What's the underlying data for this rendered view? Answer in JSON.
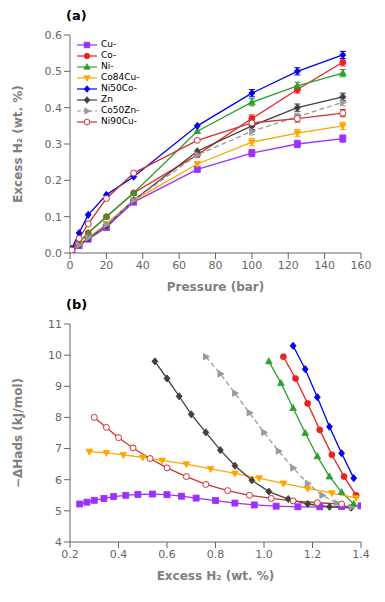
{
  "chart_data": [
    {
      "type": "line",
      "title": "(a)",
      "x_label": "Pressure (bar)",
      "y_label": "Excess H₂ (wt. %)",
      "xlim": [
        0,
        160
      ],
      "ylim": [
        0,
        0.6
      ],
      "xticks": [
        0,
        20,
        40,
        60,
        80,
        100,
        120,
        140,
        160
      ],
      "yticks": [
        {
          "value": 0.0,
          "label": "0.0"
        },
        0.1,
        0.2,
        0.3,
        0.4,
        0.5,
        0.6
      ],
      "legend": "upper left",
      "series": [
        {
          "name": "Cu-",
          "color": "#9B30FF",
          "marker": "square",
          "line_style": "solid",
          "x": [
            1,
            5,
            10,
            20,
            35,
            70,
            100,
            125,
            150
          ],
          "values": [
            0.008,
            0.02,
            0.038,
            0.07,
            0.14,
            0.23,
            0.275,
            0.3,
            0.315
          ],
          "yerr": [
            null,
            null,
            null,
            null,
            null,
            null,
            0.01,
            0.01,
            0.01
          ]
        },
        {
          "name": "Co-",
          "color": "#EE2020",
          "marker": "circle",
          "line_style": "solid",
          "x": [
            1,
            5,
            10,
            20,
            35,
            70,
            100,
            125,
            150
          ],
          "values": [
            0.01,
            0.03,
            0.055,
            0.1,
            0.165,
            0.27,
            0.37,
            0.45,
            0.525
          ],
          "yerr": [
            null,
            null,
            null,
            null,
            null,
            null,
            0.01,
            0.01,
            0.01
          ]
        },
        {
          "name": "Ni-",
          "color": "#2CA02C",
          "marker": "triangle-up",
          "line_style": "solid",
          "x": [
            1,
            5,
            10,
            20,
            35,
            70,
            100,
            125,
            150
          ],
          "values": [
            0.01,
            0.03,
            0.055,
            0.1,
            0.165,
            0.335,
            0.415,
            0.46,
            0.495
          ],
          "yerr": [
            null,
            null,
            null,
            null,
            null,
            null,
            0.01,
            0.01,
            0.01
          ]
        },
        {
          "name": "Co84Cu-",
          "color": "#FFA500",
          "marker": "triangle-down",
          "line_style": "solid",
          "x": [
            1,
            5,
            10,
            20,
            35,
            70,
            100,
            125,
            150
          ],
          "values": [
            0.008,
            0.022,
            0.042,
            0.08,
            0.145,
            0.245,
            0.305,
            0.33,
            0.35
          ],
          "yerr": [
            null,
            null,
            null,
            null,
            null,
            null,
            0.01,
            0.01,
            0.01
          ]
        },
        {
          "name": "Ni50Co-",
          "color": "#0000EE",
          "marker": "diamond",
          "line_style": "solid",
          "x": [
            1,
            5,
            10,
            20,
            35,
            70,
            100,
            125,
            150
          ],
          "values": [
            0.012,
            0.055,
            0.105,
            0.16,
            0.21,
            0.35,
            0.44,
            0.5,
            0.545
          ],
          "yerr": [
            null,
            null,
            null,
            null,
            null,
            null,
            0.01,
            0.01,
            0.01
          ]
        },
        {
          "name": "Zn",
          "color": "#404040",
          "marker": "diamond",
          "line_style": "solid",
          "x": [
            1,
            5,
            10,
            20,
            35,
            70,
            100,
            125,
            150
          ],
          "values": [
            0.008,
            0.022,
            0.04,
            0.075,
            0.145,
            0.28,
            0.35,
            0.4,
            0.43
          ],
          "yerr": [
            null,
            null,
            null,
            null,
            null,
            null,
            0.01,
            0.01,
            0.01
          ]
        },
        {
          "name": "Co50Zn-",
          "color": "#999999",
          "marker": "triangle-right",
          "line_style": "dashed",
          "x": [
            1,
            5,
            10,
            20,
            35,
            70,
            100,
            125,
            150
          ],
          "values": [
            0.008,
            0.022,
            0.042,
            0.078,
            0.145,
            0.27,
            0.335,
            0.375,
            0.415
          ],
          "yerr": [
            null,
            null,
            null,
            null,
            null,
            null,
            0.01,
            0.01,
            0.01
          ]
        },
        {
          "name": "Ni90Cu-",
          "color": "#CC3333",
          "marker": "open-circle",
          "line_style": "solid",
          "x": [
            1,
            5,
            10,
            20,
            35,
            70,
            100,
            125,
            150
          ],
          "values": [
            0.008,
            0.04,
            0.08,
            0.15,
            0.22,
            0.31,
            0.358,
            0.37,
            0.385
          ],
          "yerr": [
            null,
            null,
            null,
            null,
            null,
            null,
            0.01,
            0.01,
            0.01
          ]
        }
      ]
    },
    {
      "type": "line",
      "title": "(b)",
      "x_label": "Excess H₂ (wt. %)",
      "y_label": "−ΔHads (kJ/mol)",
      "xlim": [
        0.2,
        1.4
      ],
      "ylim": [
        4,
        11
      ],
      "xticks": [
        0.2,
        0.4,
        0.6,
        0.8,
        {
          "value": 1.0,
          "label": "1.0"
        },
        1.2,
        1.4
      ],
      "yticks": [
        4,
        5,
        6,
        7,
        8,
        9,
        10,
        11
      ],
      "series": [
        {
          "name": "Cu-",
          "color": "#9B30FF",
          "marker": "square",
          "line_style": "solid",
          "x": [
            0.24,
            0.27,
            0.3,
            0.34,
            0.38,
            0.43,
            0.48,
            0.54,
            0.6,
            0.66,
            0.72,
            0.8,
            0.88,
            0.96,
            1.05,
            1.14,
            1.23,
            1.32,
            1.4
          ],
          "values": [
            5.22,
            5.28,
            5.34,
            5.4,
            5.46,
            5.5,
            5.53,
            5.54,
            5.52,
            5.47,
            5.41,
            5.33,
            5.25,
            5.19,
            5.15,
            5.13,
            5.13,
            5.14,
            5.16
          ]
        },
        {
          "name": "Co-",
          "color": "#EE2020",
          "marker": "circle",
          "line_style": "solid",
          "x": [
            1.08,
            1.13,
            1.18,
            1.23,
            1.28,
            1.33,
            1.38
          ],
          "values": [
            9.95,
            9.25,
            8.45,
            7.6,
            6.8,
            6.1,
            5.5
          ]
        },
        {
          "name": "Ni-",
          "color": "#2CA02C",
          "marker": "triangle-up",
          "line_style": "solid",
          "x": [
            1.02,
            1.07,
            1.12,
            1.17,
            1.22,
            1.27,
            1.32,
            1.37
          ],
          "values": [
            9.8,
            9.1,
            8.3,
            7.5,
            6.75,
            6.1,
            5.6,
            5.22
          ]
        },
        {
          "name": "Co84Cu-",
          "color": "#FFA500",
          "marker": "triangle-down",
          "line_style": "solid",
          "x": [
            0.28,
            0.35,
            0.42,
            0.5,
            0.58,
            0.68,
            0.78,
            0.88,
            0.98,
            1.08,
            1.18,
            1.28,
            1.38
          ],
          "values": [
            6.9,
            6.86,
            6.8,
            6.72,
            6.62,
            6.5,
            6.35,
            6.2,
            6.05,
            5.88,
            5.72,
            5.57,
            5.42
          ]
        },
        {
          "name": "Ni50Co-",
          "color": "#0000EE",
          "marker": "diamond",
          "line_style": "solid",
          "x": [
            1.12,
            1.17,
            1.22,
            1.27,
            1.32,
            1.37
          ],
          "values": [
            10.3,
            9.55,
            8.65,
            7.7,
            6.85,
            6.05
          ]
        },
        {
          "name": "Zn",
          "color": "#404040",
          "marker": "diamond",
          "line_style": "solid",
          "x": [
            0.55,
            0.6,
            0.65,
            0.7,
            0.76,
            0.82,
            0.88,
            0.95,
            1.02,
            1.1,
            1.18,
            1.27,
            1.36
          ],
          "values": [
            9.8,
            9.25,
            8.68,
            8.1,
            7.52,
            6.95,
            6.45,
            5.98,
            5.62,
            5.38,
            5.22,
            5.13,
            5.1
          ]
        },
        {
          "name": "Co50Zn-",
          "color": "#999999",
          "marker": "triangle-right",
          "line_style": "dashed",
          "x": [
            0.76,
            0.82,
            0.88,
            0.94,
            1.0,
            1.06,
            1.12,
            1.18,
            1.24,
            1.3,
            1.36
          ],
          "values": [
            9.95,
            9.4,
            8.78,
            8.15,
            7.52,
            6.92,
            6.38,
            5.88,
            5.5,
            5.25,
            5.12
          ]
        },
        {
          "name": "Ni90Cu-",
          "color": "#CC3333",
          "marker": "open-circle",
          "line_style": "solid",
          "x": [
            0.3,
            0.35,
            0.4,
            0.46,
            0.53,
            0.6,
            0.68,
            0.76,
            0.85,
            0.94,
            1.03,
            1.12,
            1.22,
            1.32
          ],
          "values": [
            8.0,
            7.68,
            7.35,
            7.02,
            6.68,
            6.38,
            6.1,
            5.85,
            5.65,
            5.5,
            5.4,
            5.32,
            5.26,
            5.22
          ]
        }
      ]
    }
  ]
}
